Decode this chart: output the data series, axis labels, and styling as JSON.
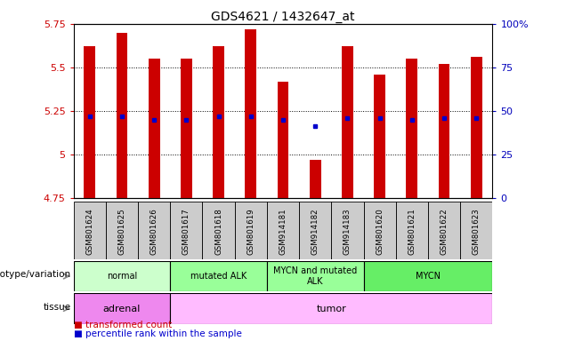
{
  "title": "GDS4621 / 1432647_at",
  "samples": [
    "GSM801624",
    "GSM801625",
    "GSM801626",
    "GSM801617",
    "GSM801618",
    "GSM801619",
    "GSM914181",
    "GSM914182",
    "GSM914183",
    "GSM801620",
    "GSM801621",
    "GSM801622",
    "GSM801623"
  ],
  "bar_values": [
    5.62,
    5.7,
    5.55,
    5.55,
    5.62,
    5.72,
    5.42,
    4.97,
    5.62,
    5.46,
    5.55,
    5.52,
    5.56
  ],
  "blue_dot_values": [
    5.22,
    5.22,
    5.2,
    5.2,
    5.22,
    5.22,
    5.2,
    5.16,
    5.21,
    5.21,
    5.2,
    5.21,
    5.21
  ],
  "bar_base": 4.75,
  "ylim": [
    4.75,
    5.75
  ],
  "yticks_left": [
    4.75,
    5.0,
    5.25,
    5.5,
    5.75
  ],
  "ytick_labels_left": [
    "4.75",
    "5",
    "5.25",
    "5.5",
    "5.75"
  ],
  "yticks_right_pct": [
    0,
    25,
    50,
    75,
    100
  ],
  "ytick_labels_right": [
    "0",
    "25",
    "50",
    "75",
    "100%"
  ],
  "bar_color": "#cc0000",
  "dot_color": "#0000cc",
  "bg_color": "#ffffff",
  "genotype_groups": [
    {
      "label": "normal",
      "start": 0,
      "end": 3,
      "color": "#ccffcc"
    },
    {
      "label": "mutated ALK",
      "start": 3,
      "end": 6,
      "color": "#99ff99"
    },
    {
      "label": "MYCN and mutated\nALK",
      "start": 6,
      "end": 9,
      "color": "#99ff99"
    },
    {
      "label": "MYCN",
      "start": 9,
      "end": 13,
      "color": "#66ee66"
    }
  ],
  "tissue_groups": [
    {
      "label": "adrenal",
      "start": 0,
      "end": 3,
      "color": "#ee88ee"
    },
    {
      "label": "tumor",
      "start": 3,
      "end": 13,
      "color": "#ffbbff"
    }
  ],
  "legend_items": [
    {
      "label": "transformed count",
      "color": "#cc0000"
    },
    {
      "label": "percentile rank within the sample",
      "color": "#0000cc"
    }
  ],
  "ylabel_left_color": "#cc0000",
  "ylabel_right_color": "#0000bb",
  "sample_bg_color": "#cccccc"
}
